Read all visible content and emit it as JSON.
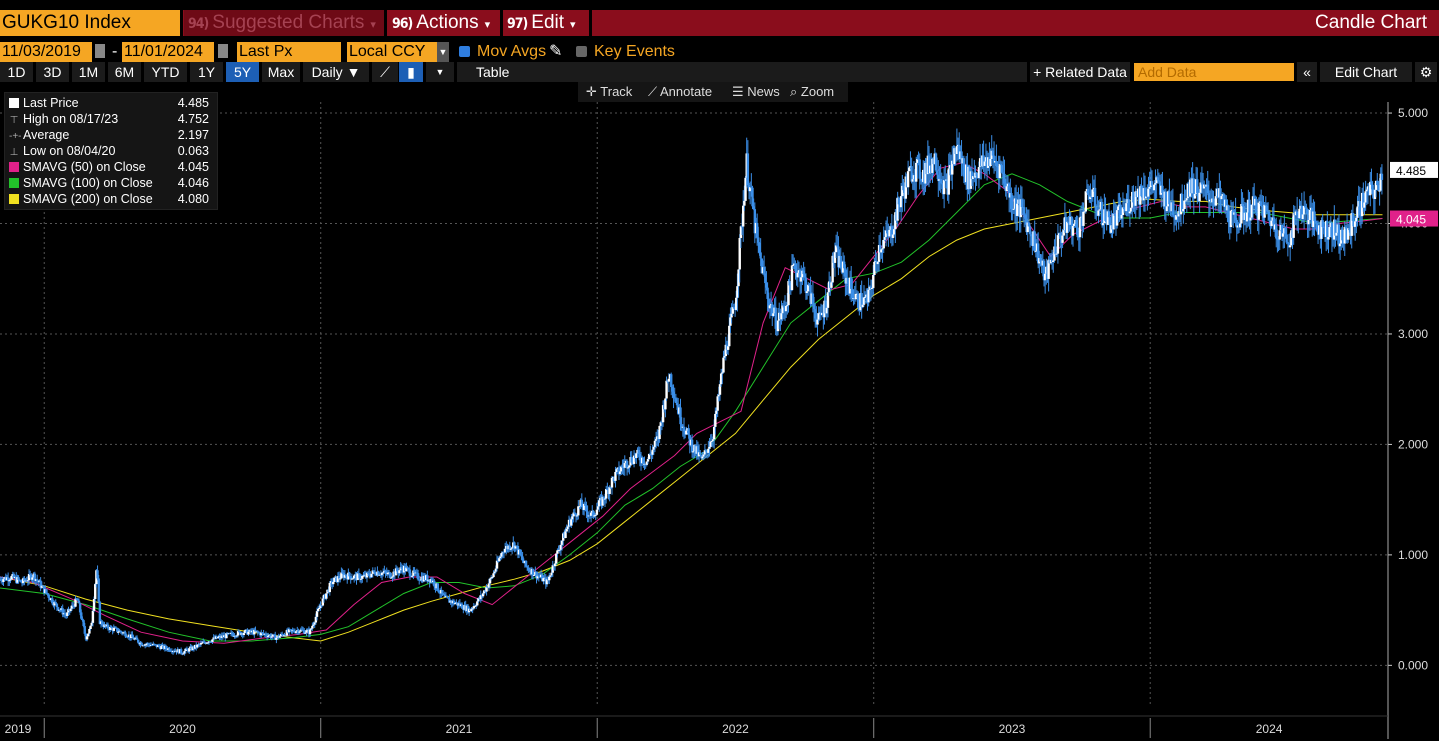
{
  "header": {
    "ticker": "GUKG10 Index",
    "suggested_num": "94)",
    "suggested_label": "Suggested Charts",
    "actions_num": "96)",
    "actions_label": "Actions",
    "edit_num": "97)",
    "edit_label": "Edit",
    "window_title": "Candle Chart"
  },
  "controls": {
    "start_date": "11/03/2019",
    "end_date": "11/01/2024",
    "date_sep": "-",
    "price_field": "Last Px",
    "currency": "Local CCY",
    "mov_avgs_label": "Mov Avgs",
    "key_events_label": "Key Events"
  },
  "toolbar": {
    "periods": [
      "1D",
      "3D",
      "1M",
      "6M",
      "YTD",
      "1Y",
      "5Y",
      "Max"
    ],
    "active_period": "5Y",
    "frequency": "Daily ▼",
    "table_label": "Table",
    "related_data_label": "+ Related Data",
    "add_data_placeholder": "Add Data",
    "edit_chart_label": "Edit Chart"
  },
  "chart_tools": {
    "track": "Track",
    "annotate": "Annotate",
    "news": "News",
    "zoom": "Zoom"
  },
  "legend": [
    {
      "label": "Last Price",
      "value": "4.485",
      "color": "#ffffff",
      "kind": "swatch"
    },
    {
      "label": "High on 08/17/23",
      "value": "4.752",
      "kind": "high"
    },
    {
      "label": "Average",
      "value": "2.197",
      "kind": "avg"
    },
    {
      "label": "Low on 08/04/20",
      "value": "0.063",
      "kind": "low"
    },
    {
      "label": "SMAVG (50)  on Close",
      "value": "4.045",
      "color": "#e0218a",
      "kind": "swatch"
    },
    {
      "label": "SMAVG (100)  on Close",
      "value": "4.046",
      "color": "#22c22a",
      "kind": "swatch"
    },
    {
      "label": "SMAVG (200)  on Close",
      "value": "4.080",
      "color": "#f0e020",
      "kind": "swatch"
    }
  ],
  "colors": {
    "accent": "#f5a623",
    "header_bg": "#8a0d1c",
    "candle": "#ffffff",
    "candle_edge": "#3b8fe8",
    "sma50": "#e0218a",
    "sma100": "#22c22a",
    "sma200": "#f0e020"
  },
  "chart_data": {
    "type": "line",
    "title": "",
    "xlabel": "",
    "ylabel": "",
    "x_ticks": [
      "2019",
      "2020",
      "2021",
      "2022",
      "2023",
      "2024"
    ],
    "year_boundaries": [
      2020.0,
      2021.0,
      2022.0,
      2023.0,
      2024.0
    ],
    "xlim": [
      2019.84,
      2024.86
    ],
    "y_ticks": [
      "0.000",
      "1.000",
      "2.000",
      "3.000",
      "4.000",
      "5.000"
    ],
    "ylim": [
      -0.35,
      5.1
    ],
    "grid": true,
    "price_tag": "4.485",
    "sma_tag": "4.045",
    "series": [
      {
        "name": "Last Price",
        "x": [
          2019.84,
          2019.88,
          2019.92,
          2019.96,
          2020.0,
          2020.04,
          2020.08,
          2020.12,
          2020.15,
          2020.17,
          2020.19,
          2020.2,
          2020.22,
          2020.26,
          2020.3,
          2020.35,
          2020.4,
          2020.45,
          2020.5,
          2020.55,
          2020.59,
          2020.63,
          2020.68,
          2020.72,
          2020.76,
          2020.8,
          2020.84,
          2020.88,
          2020.92,
          2020.96,
          2021.0,
          2021.04,
          2021.08,
          2021.12,
          2021.16,
          2021.2,
          2021.25,
          2021.3,
          2021.35,
          2021.4,
          2021.45,
          2021.5,
          2021.54,
          2021.58,
          2021.62,
          2021.66,
          2021.7,
          2021.74,
          2021.78,
          2021.82,
          2021.86,
          2021.9,
          2021.94,
          2021.98,
          2022.02,
          2022.06,
          2022.1,
          2022.14,
          2022.18,
          2022.22,
          2022.26,
          2022.3,
          2022.34,
          2022.38,
          2022.42,
          2022.46,
          2022.5,
          2022.54,
          2022.58,
          2022.62,
          2022.65,
          2022.68,
          2022.71,
          2022.74,
          2022.77,
          2022.8,
          2022.83,
          2022.86,
          2022.9,
          2022.94,
          2022.98,
          2023.02,
          2023.06,
          2023.1,
          2023.14,
          2023.18,
          2023.22,
          2023.26,
          2023.3,
          2023.34,
          2023.38,
          2023.42,
          2023.46,
          2023.5,
          2023.54,
          2023.58,
          2023.62,
          2023.66,
          2023.7,
          2023.74,
          2023.78,
          2023.82,
          2023.86,
          2023.9,
          2023.94,
          2023.98,
          2024.02,
          2024.06,
          2024.1,
          2024.14,
          2024.18,
          2024.22,
          2024.26,
          2024.3,
          2024.34,
          2024.38,
          2024.42,
          2024.46,
          2024.5,
          2024.54,
          2024.58,
          2024.62,
          2024.66,
          2024.7,
          2024.74,
          2024.78,
          2024.82,
          2024.84
        ],
        "y": [
          0.78,
          0.8,
          0.75,
          0.82,
          0.68,
          0.55,
          0.45,
          0.6,
          0.25,
          0.35,
          0.9,
          0.4,
          0.35,
          0.32,
          0.28,
          0.2,
          0.18,
          0.15,
          0.12,
          0.17,
          0.22,
          0.25,
          0.28,
          0.3,
          0.3,
          0.28,
          0.25,
          0.3,
          0.32,
          0.3,
          0.55,
          0.75,
          0.82,
          0.8,
          0.8,
          0.85,
          0.82,
          0.88,
          0.8,
          0.78,
          0.6,
          0.55,
          0.5,
          0.62,
          0.8,
          1.05,
          1.1,
          0.9,
          0.82,
          0.75,
          1.05,
          1.3,
          1.45,
          1.35,
          1.5,
          1.7,
          1.82,
          1.9,
          1.85,
          2.05,
          2.65,
          2.25,
          2.0,
          1.85,
          2.1,
          2.8,
          3.3,
          4.55,
          3.8,
          3.3,
          3.1,
          3.25,
          3.6,
          3.55,
          3.35,
          3.1,
          3.3,
          3.75,
          3.5,
          3.3,
          3.3,
          3.8,
          3.9,
          4.25,
          4.5,
          4.45,
          4.6,
          4.3,
          4.7,
          4.4,
          4.5,
          4.6,
          4.5,
          4.2,
          4.1,
          3.85,
          3.5,
          3.8,
          4.0,
          3.95,
          4.3,
          4.1,
          4.0,
          4.1,
          4.25,
          4.3,
          4.35,
          4.2,
          4.1,
          4.35,
          4.3,
          4.25,
          4.2,
          4.0,
          4.1,
          4.15,
          4.1,
          3.95,
          3.85,
          4.15,
          4.05,
          3.95,
          3.95,
          3.85,
          4.05,
          4.25,
          4.3,
          4.485
        ]
      },
      {
        "name": "SMAVG (50)",
        "x": [
          2019.84,
          2019.96,
          2020.1,
          2020.22,
          2020.35,
          2020.5,
          2020.65,
          2020.8,
          2020.92,
          2021.02,
          2021.12,
          2021.22,
          2021.32,
          2021.42,
          2021.52,
          2021.62,
          2021.72,
          2021.82,
          2021.92,
          2022.02,
          2022.12,
          2022.2,
          2022.28,
          2022.36,
          2022.44,
          2022.52,
          2022.6,
          2022.68,
          2022.76,
          2022.84,
          2022.92,
          2023.0,
          2023.08,
          2023.16,
          2023.24,
          2023.32,
          2023.4,
          2023.48,
          2023.56,
          2023.64,
          2023.72,
          2023.8,
          2023.88,
          2023.96,
          2024.04,
          2024.12,
          2024.2,
          2024.28,
          2024.36,
          2024.44,
          2024.52,
          2024.6,
          2024.68,
          2024.76,
          2024.84
        ],
        "y": [
          0.8,
          0.75,
          0.6,
          0.45,
          0.3,
          0.22,
          0.2,
          0.25,
          0.28,
          0.32,
          0.55,
          0.75,
          0.8,
          0.8,
          0.65,
          0.55,
          0.75,
          0.95,
          1.15,
          1.35,
          1.6,
          1.75,
          1.9,
          2.1,
          2.2,
          2.3,
          3.1,
          3.6,
          3.5,
          3.4,
          3.45,
          3.7,
          3.95,
          4.25,
          4.5,
          4.55,
          4.45,
          4.3,
          4.0,
          3.7,
          3.9,
          4.0,
          4.1,
          4.15,
          4.2,
          4.15,
          4.15,
          4.1,
          4.05,
          4.0,
          3.95,
          3.95,
          4.0,
          4.02,
          4.045
        ]
      },
      {
        "name": "SMAVG (100)",
        "x": [
          2019.84,
          2020.0,
          2020.15,
          2020.3,
          2020.45,
          2020.6,
          2020.75,
          2020.9,
          2021.0,
          2021.1,
          2021.2,
          2021.3,
          2021.4,
          2021.5,
          2021.6,
          2021.7,
          2021.8,
          2021.9,
          2022.0,
          2022.1,
          2022.2,
          2022.3,
          2022.4,
          2022.5,
          2022.6,
          2022.7,
          2022.8,
          2022.9,
          2023.0,
          2023.1,
          2023.2,
          2023.3,
          2023.4,
          2023.5,
          2023.6,
          2023.7,
          2023.8,
          2023.9,
          2024.0,
          2024.1,
          2024.2,
          2024.3,
          2024.4,
          2024.5,
          2024.6,
          2024.7,
          2024.84
        ],
        "y": [
          0.7,
          0.65,
          0.55,
          0.42,
          0.3,
          0.22,
          0.22,
          0.25,
          0.28,
          0.35,
          0.5,
          0.65,
          0.75,
          0.75,
          0.7,
          0.72,
          0.82,
          1.0,
          1.2,
          1.45,
          1.6,
          1.8,
          1.95,
          2.3,
          2.7,
          3.1,
          3.3,
          3.5,
          3.55,
          3.65,
          3.85,
          4.1,
          4.35,
          4.45,
          4.35,
          4.2,
          4.1,
          4.05,
          4.05,
          4.1,
          4.1,
          4.1,
          4.1,
          4.05,
          4.0,
          4.02,
          4.046
        ]
      },
      {
        "name": "SMAVG (200)",
        "x": [
          2019.84,
          2020.0,
          2020.15,
          2020.3,
          2020.45,
          2020.6,
          2020.75,
          2020.9,
          2021.0,
          2021.1,
          2021.2,
          2021.3,
          2021.4,
          2021.5,
          2021.6,
          2021.7,
          2021.8,
          2021.9,
          2022.0,
          2022.1,
          2022.2,
          2022.3,
          2022.4,
          2022.5,
          2022.6,
          2022.7,
          2022.8,
          2022.9,
          2023.0,
          2023.1,
          2023.2,
          2023.3,
          2023.4,
          2023.5,
          2023.6,
          2023.7,
          2023.8,
          2023.9,
          2024.0,
          2024.1,
          2024.2,
          2024.3,
          2024.4,
          2024.5,
          2024.6,
          2024.7,
          2024.84
        ],
        "y": [
          0.8,
          0.72,
          0.6,
          0.5,
          0.42,
          0.36,
          0.3,
          0.25,
          0.22,
          0.3,
          0.4,
          0.5,
          0.58,
          0.65,
          0.72,
          0.78,
          0.85,
          0.95,
          1.1,
          1.3,
          1.5,
          1.7,
          1.9,
          2.1,
          2.4,
          2.7,
          2.95,
          3.15,
          3.35,
          3.5,
          3.7,
          3.85,
          3.95,
          4.0,
          4.05,
          4.1,
          4.15,
          4.2,
          4.22,
          4.2,
          4.2,
          4.15,
          4.12,
          4.1,
          4.08,
          4.08,
          4.08
        ]
      }
    ]
  }
}
